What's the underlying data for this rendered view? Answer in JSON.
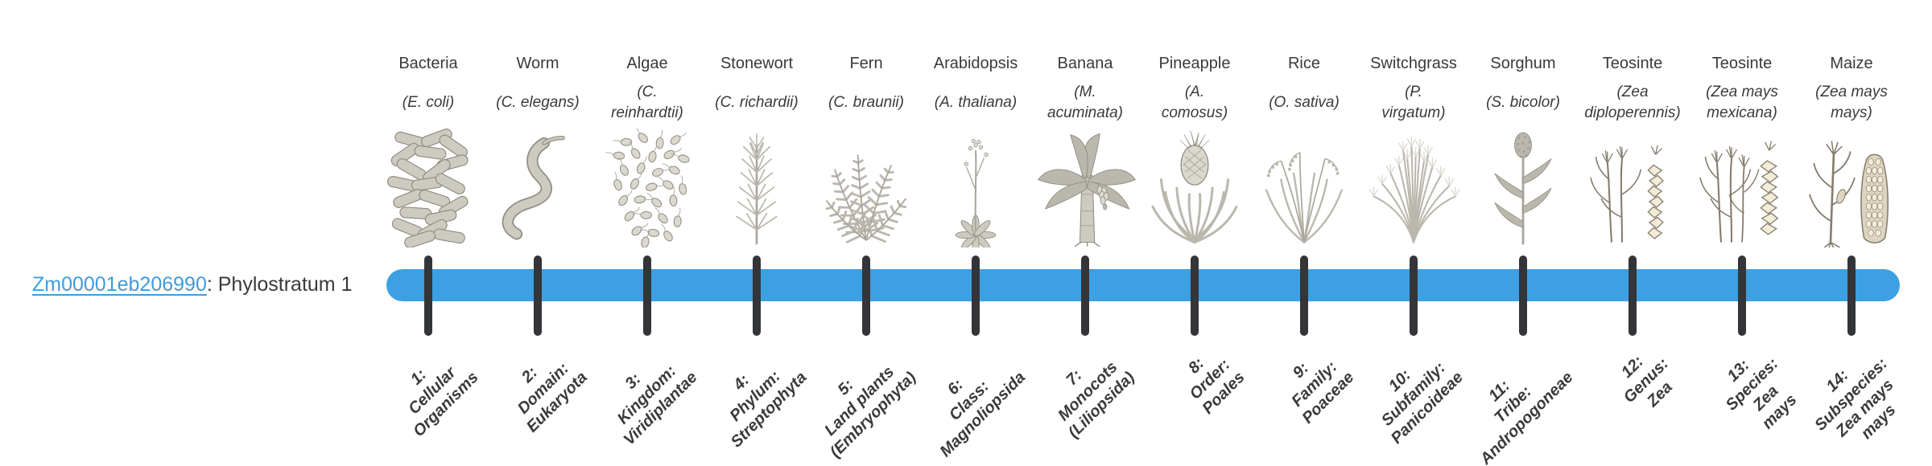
{
  "colors": {
    "bar": "#3da0e2",
    "tick": "#333538",
    "link": "#3e9bdc",
    "text": "#3a3a3a"
  },
  "gene": {
    "link_text": "Zm00001eb206990",
    "suffix_text": ": Phylostratum 1"
  },
  "organisms": [
    {
      "name": "Bacteria",
      "scientific": "(E. coli)",
      "icon": "bacteria-icon",
      "stratum": "1:\nCellular\nOrganisms"
    },
    {
      "name": "Worm",
      "scientific": "(C. elegans)",
      "icon": "worm-icon",
      "stratum": "2:\nDomain:\nEukaryota"
    },
    {
      "name": "Algae",
      "scientific": "(C.\nreinhardtii)",
      "icon": "algae-icon",
      "stratum": "3:\nKingdom:\nViridiplantae"
    },
    {
      "name": "Stonewort",
      "scientific": "(C. richardii)",
      "icon": "stonewort-icon",
      "stratum": "4:\nPhylum:\nStreptophyta"
    },
    {
      "name": "Fern",
      "scientific": "(C. braunii)",
      "icon": "fern-icon",
      "stratum": "5:\nLand plants\n(Embryophyta)"
    },
    {
      "name": "Arabidopsis",
      "scientific": "(A. thaliana)",
      "icon": "arabidopsis-icon",
      "stratum": "6:\nClass:\nMagnoliopsida"
    },
    {
      "name": "Banana",
      "scientific": "(M.\nacuminata)",
      "icon": "banana-icon",
      "stratum": "7:\nMonocots\n(Liliopsida)"
    },
    {
      "name": "Pineapple",
      "scientific": "(A.\ncomosus)",
      "icon": "pineapple-icon",
      "stratum": "8:\nOrder:\nPoales"
    },
    {
      "name": "Rice",
      "scientific": "(O. sativa)",
      "icon": "rice-icon",
      "stratum": "9:\nFamily:\nPoaceae"
    },
    {
      "name": "Switchgrass",
      "scientific": "(P.\nvirgatum)",
      "icon": "switchgrass-icon",
      "stratum": "10:\nSubfamily:\nPanicoideae"
    },
    {
      "name": "Sorghum",
      "scientific": "(S. bicolor)",
      "icon": "sorghum-icon",
      "stratum": "11:\nTribe:\nAndropogoneae"
    },
    {
      "name": "Teosinte",
      "scientific": "(Zea\ndiploperennis)",
      "icon": "teosinte-diploperennis-icon",
      "stratum": "12:\nGenus:\nZea"
    },
    {
      "name": "Teosinte",
      "scientific": "(Zea mays\nmexicana)",
      "icon": "teosinte-mexicana-icon",
      "stratum": "13:\nSpecies:\nZea\nmays"
    },
    {
      "name": "Maize",
      "scientific": "(Zea mays\nmays)",
      "icon": "maize-icon",
      "stratum": "14:\nSubspecies:\nZea mays\nmays"
    }
  ]
}
